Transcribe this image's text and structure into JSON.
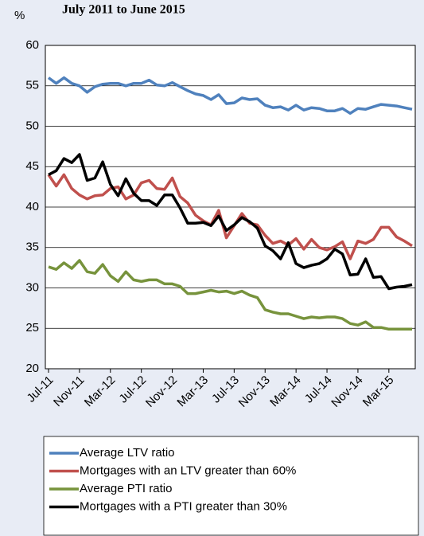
{
  "chart_data": {
    "type": "line",
    "title": "July 2011 to June 2015",
    "y_label": "%",
    "categories": [
      "Jul-11",
      null,
      null,
      null,
      "Nov-11",
      null,
      null,
      null,
      "Mar-12",
      null,
      null,
      null,
      "Jul-12",
      null,
      null,
      null,
      "Nov-12",
      null,
      null,
      null,
      "Mar-13",
      null,
      null,
      null,
      "Jul-13",
      null,
      null,
      null,
      "Nov-13",
      null,
      null,
      null,
      "Mar-14",
      null,
      null,
      null,
      "Jul-14",
      null,
      null,
      null,
      "Nov-14",
      null,
      null,
      null,
      "Mar-15",
      null,
      null,
      null
    ],
    "ylim": [
      20,
      60
    ],
    "yticks": [
      20,
      25,
      30,
      35,
      40,
      45,
      50,
      55,
      60
    ],
    "grid": true,
    "series": [
      {
        "name": "Average LTV ratio",
        "color": "#4f81bd",
        "values": [
          56,
          55.3,
          56,
          55.3,
          55,
          54.2,
          54.9,
          55.2,
          55.3,
          55.3,
          55,
          55.3,
          55.3,
          55.7,
          55.1,
          55,
          55.4,
          54.9,
          54.4,
          54,
          53.8,
          53.3,
          53.9,
          52.8,
          52.9,
          53.5,
          53.3,
          53.4,
          52.6,
          52.3,
          52.4,
          52,
          52.6,
          52,
          52.3,
          52.2,
          51.9,
          51.9,
          52.2,
          51.6,
          52.2,
          52.1,
          52.4,
          52.7,
          52.6,
          52.5,
          52.3,
          52.1
        ]
      },
      {
        "name": "Mortgages with an LTV greater than 60%",
        "color": "#c0504d",
        "values": [
          44,
          42.6,
          44,
          42.3,
          41.5,
          41,
          41.4,
          41.5,
          42.3,
          42.5,
          41,
          41.5,
          43,
          43.3,
          42.3,
          42.2,
          43.6,
          41.3,
          40.5,
          39,
          38.3,
          37.8,
          39.6,
          36.2,
          37.7,
          39.2,
          38,
          37.8,
          36.5,
          35.5,
          35.8,
          35.3,
          36.1,
          34.8,
          36,
          35,
          34.7,
          35.1,
          35.7,
          33.6,
          35.8,
          35.5,
          36,
          37.5,
          37.5,
          36.3,
          35.8,
          35.2
        ]
      },
      {
        "name": "Average PTI ratio",
        "color": "#77933c",
        "values": [
          32.6,
          32.3,
          33.1,
          32.4,
          33.4,
          32,
          31.8,
          32.9,
          31.5,
          30.8,
          32,
          31,
          30.8,
          31,
          31,
          30.5,
          30.5,
          30.2,
          29.3,
          29.3,
          29.5,
          29.7,
          29.5,
          29.6,
          29.3,
          29.6,
          29.1,
          28.8,
          27.3,
          27,
          26.8,
          26.8,
          26.5,
          26.2,
          26.4,
          26.3,
          26.4,
          26.4,
          26.2,
          25.6,
          25.4,
          25.8,
          25.1,
          25.1,
          24.9,
          24.9,
          24.9,
          24.9
        ]
      },
      {
        "name": "Mortgages with a PTI greater than 30%",
        "color": "#000000",
        "values": [
          44,
          44.5,
          46,
          45.5,
          46.5,
          43.3,
          43.6,
          45.6,
          42.8,
          41.4,
          43.5,
          41.7,
          40.8,
          40.8,
          40.2,
          41.5,
          41.5,
          39.9,
          38,
          38,
          38.1,
          37.7,
          38.9,
          37.1,
          37.8,
          38.7,
          38.2,
          37.4,
          35.2,
          34.6,
          33.6,
          35.6,
          33,
          32.5,
          32.8,
          33,
          33.6,
          34.8,
          34.2,
          31.6,
          31.7,
          33.6,
          31.3,
          31.4,
          29.9,
          30.1,
          30.2,
          30.4
        ]
      }
    ]
  }
}
